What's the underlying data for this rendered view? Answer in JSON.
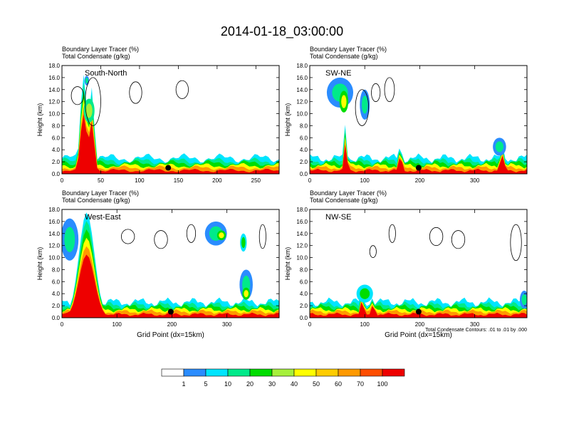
{
  "title": "2014-01-18_03:00:00",
  "chart_data": [
    {
      "type": "heatmap",
      "subtitle_line1": "Boundary Layer Tracer   (%)",
      "subtitle_line2": "Total Condensate   (g/kg)",
      "panel_label": "South-North",
      "ylabel": "Height (km)",
      "xlabel": "",
      "ylim": [
        0,
        18
      ],
      "xlim": [
        0,
        280
      ],
      "y_ticks": [
        "0.0",
        "2.0",
        "4.0",
        "6.0",
        "8.0",
        "10.0",
        "12.0",
        "14.0",
        "16.0",
        "18.0"
      ],
      "x_ticks": [
        {
          "value": 0,
          "label": "0"
        },
        {
          "value": 50,
          "label": "50"
        },
        {
          "value": 100,
          "label": "100"
        },
        {
          "value": 150,
          "label": "150"
        },
        {
          "value": 200,
          "label": "200"
        },
        {
          "value": 250,
          "label": "250"
        }
      ],
      "marker": {
        "x": 137,
        "y": 1.0
      },
      "plumes": [
        {
          "center": 28,
          "width": 6,
          "top": 16.5
        },
        {
          "center": 38,
          "width": 5,
          "top": 14.5
        }
      ],
      "cloud_patches": [
        {
          "x": 35,
          "y": 10.5,
          "rx": 7,
          "ry": 2.0,
          "level": 5
        },
        {
          "x": 32,
          "y": 15.5,
          "rx": 3,
          "ry": 0.8,
          "level": 3
        }
      ],
      "contours": [
        {
          "x": 20,
          "y": 13,
          "rx": 8,
          "ry": 1.5
        },
        {
          "x": 40,
          "y": 12,
          "rx": 10,
          "ry": 4
        },
        {
          "x": 95,
          "y": 13.5,
          "rx": 8,
          "ry": 1.8
        },
        {
          "x": 155,
          "y": 14,
          "rx": 8,
          "ry": 1.5
        }
      ]
    },
    {
      "type": "heatmap",
      "subtitle_line1": "Boundary Layer Tracer   (%)",
      "subtitle_line2": "Total Condensate   (g/kg)",
      "panel_label": "SW-NE",
      "ylabel": "Height (km)",
      "xlabel": "",
      "ylim": [
        0,
        18
      ],
      "xlim": [
        0,
        395
      ],
      "y_ticks": [
        "0.0",
        "2.0",
        "4.0",
        "6.0",
        "8.0",
        "10.0",
        "12.0",
        "14.0",
        "16.0",
        "18.0"
      ],
      "x_ticks": [
        {
          "value": 0,
          "label": "0"
        },
        {
          "value": 100,
          "label": "100"
        },
        {
          "value": 200,
          "label": "200"
        },
        {
          "value": 300,
          "label": "300"
        }
      ],
      "marker": {
        "x": 198,
        "y": 1.0
      },
      "plumes": [
        {
          "center": 65,
          "width": 4,
          "top": 8.5
        },
        {
          "center": 165,
          "width": 4,
          "top": 5.5
        },
        {
          "center": 350,
          "width": 6,
          "top": 5.0
        }
      ],
      "cloud_patches": [
        {
          "x": 55,
          "y": 13.5,
          "rx": 24,
          "ry": 2.5,
          "level": 3
        },
        {
          "x": 62,
          "y": 12,
          "rx": 8,
          "ry": 1.8,
          "level": 6
        },
        {
          "x": 100,
          "y": 11.5,
          "rx": 9,
          "ry": 2.5,
          "level": 3
        },
        {
          "x": 345,
          "y": 4.5,
          "rx": 12,
          "ry": 1.5,
          "level": 3
        }
      ],
      "contours": [
        {
          "x": 120,
          "y": 13.5,
          "rx": 8,
          "ry": 1.5
        },
        {
          "x": 145,
          "y": 14,
          "rx": 9,
          "ry": 2
        },
        {
          "x": 95,
          "y": 11,
          "rx": 12,
          "ry": 3
        }
      ]
    },
    {
      "type": "heatmap",
      "subtitle_line1": "Boundary Layer Tracer   (%)",
      "subtitle_line2": "Total Condensate   (g/kg)",
      "panel_label": "West-East",
      "ylabel": "Height (km)",
      "xlabel": "Grid Point (dx=15km)",
      "ylim": [
        0,
        18
      ],
      "xlim": [
        0,
        395
      ],
      "y_ticks": [
        "0.0",
        "2.0",
        "4.0",
        "6.0",
        "8.0",
        "10.0",
        "12.0",
        "14.0",
        "16.0",
        "18.0"
      ],
      "x_ticks": [
        {
          "value": 0,
          "label": "0"
        },
        {
          "value": 100,
          "label": "100"
        },
        {
          "value": 200,
          "label": "200"
        },
        {
          "value": 300,
          "label": "300"
        }
      ],
      "marker": {
        "x": 198,
        "y": 1.0
      },
      "plumes": [
        {
          "center": 45,
          "width": 20,
          "top": 17.5
        }
      ],
      "cloud_patches": [
        {
          "x": 14,
          "y": 13,
          "rx": 16,
          "ry": 3.5,
          "level": 3
        },
        {
          "x": 280,
          "y": 14,
          "rx": 20,
          "ry": 2,
          "level": 3
        },
        {
          "x": 290,
          "y": 13.7,
          "rx": 8,
          "ry": 0.8,
          "level": 6
        },
        {
          "x": 330,
          "y": 12.5,
          "rx": 6,
          "ry": 1.5,
          "level": 4
        },
        {
          "x": 335,
          "y": 5.5,
          "rx": 12,
          "ry": 2.5,
          "level": 3
        },
        {
          "x": 335,
          "y": 4,
          "rx": 7,
          "ry": 1,
          "level": 6
        }
      ],
      "contours": [
        {
          "x": 120,
          "y": 13.5,
          "rx": 12,
          "ry": 1.2
        },
        {
          "x": 180,
          "y": 13,
          "rx": 12,
          "ry": 1.5
        },
        {
          "x": 235,
          "y": 14,
          "rx": 8,
          "ry": 1.5
        },
        {
          "x": 365,
          "y": 13.5,
          "rx": 6,
          "ry": 2
        }
      ]
    },
    {
      "type": "heatmap",
      "subtitle_line1": "Boundary Layer Tracer   (%)",
      "subtitle_line2": "Total Condensate   (g/kg)",
      "panel_label": "NW-SE",
      "ylabel": "Height (km)",
      "xlabel": "Grid Point (dx=15km)",
      "ylim": [
        0,
        18
      ],
      "xlim": [
        0,
        395
      ],
      "y_ticks": [
        "0.0",
        "2.0",
        "4.0",
        "6.0",
        "8.0",
        "10.0",
        "12.0",
        "14.0",
        "16.0",
        "18.0"
      ],
      "x_ticks": [
        {
          "value": 0,
          "label": "0"
        },
        {
          "value": 100,
          "label": "100"
        },
        {
          "value": 200,
          "label": "200"
        },
        {
          "value": 300,
          "label": "300"
        }
      ],
      "marker": {
        "x": 198,
        "y": 1.0
      },
      "plumes": [
        {
          "center": 95,
          "width": 5,
          "top": 4.5
        },
        {
          "center": 115,
          "width": 5,
          "top": 3.5
        }
      ],
      "cloud_patches": [
        {
          "x": 100,
          "y": 4,
          "rx": 15,
          "ry": 1.5,
          "level": 4
        },
        {
          "x": 390,
          "y": 3,
          "rx": 8,
          "ry": 1.5,
          "level": 3
        }
      ],
      "contours": [
        {
          "x": 150,
          "y": 14,
          "rx": 6,
          "ry": 1.5
        },
        {
          "x": 230,
          "y": 13.5,
          "rx": 12,
          "ry": 1.5
        },
        {
          "x": 270,
          "y": 13,
          "rx": 12,
          "ry": 1.5
        },
        {
          "x": 375,
          "y": 12.5,
          "rx": 10,
          "ry": 3
        },
        {
          "x": 115,
          "y": 11,
          "rx": 6,
          "ry": 1
        }
      ],
      "contour_note": "Total Condensate Contours: .01 to .01 by .000"
    }
  ],
  "colorbar": {
    "labels": [
      "1",
      "5",
      "10",
      "20",
      "30",
      "40",
      "50",
      "60",
      "70",
      "100"
    ],
    "colors": [
      "#ffffff",
      "#2a8cff",
      "#00e5ff",
      "#00ea8a",
      "#00dd00",
      "#a6f03c",
      "#ffff00",
      "#ffcc00",
      "#ff9900",
      "#ff4d00",
      "#ee0000"
    ]
  }
}
